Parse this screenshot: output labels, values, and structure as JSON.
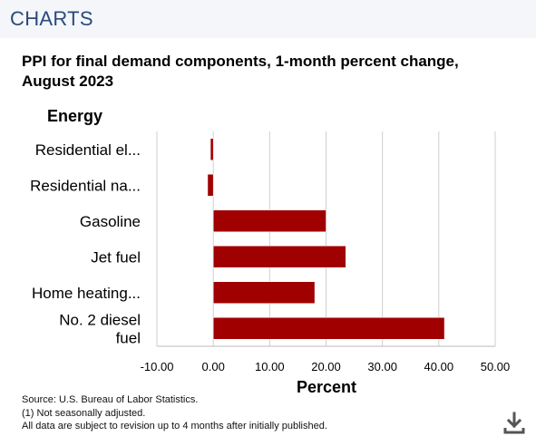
{
  "header": {
    "title": "CHARTS"
  },
  "chart_data": {
    "type": "bar",
    "orientation": "horizontal",
    "title": "PPI for final demand components, 1-month percent change, August 2023",
    "group_label": "Energy",
    "categories": [
      "Residential el...",
      "Residential na...",
      "Gasoline",
      "Jet fuel",
      "Home heating...",
      "No. 2 diesel fuel"
    ],
    "values": [
      -0.5,
      -1.0,
      20.0,
      23.5,
      18.0,
      41.0
    ],
    "xlabel": "Percent",
    "xlim": [
      -10,
      50
    ],
    "xticks": [
      -10,
      0,
      10,
      20,
      30,
      40,
      50
    ],
    "xtick_labels": [
      "-10.00",
      "0.00",
      "10.00",
      "20.00",
      "30.00",
      "40.00",
      "50.00"
    ],
    "grid": true,
    "bar_color": "#a00000"
  },
  "footer": {
    "source": "Source: U.S. Bureau of Labor Statistics.",
    "note": "(1) Not seasonally adjusted.",
    "revision": "All data are subject to revision up to 4 months after initially published."
  },
  "icons": {
    "download": "download-icon"
  }
}
